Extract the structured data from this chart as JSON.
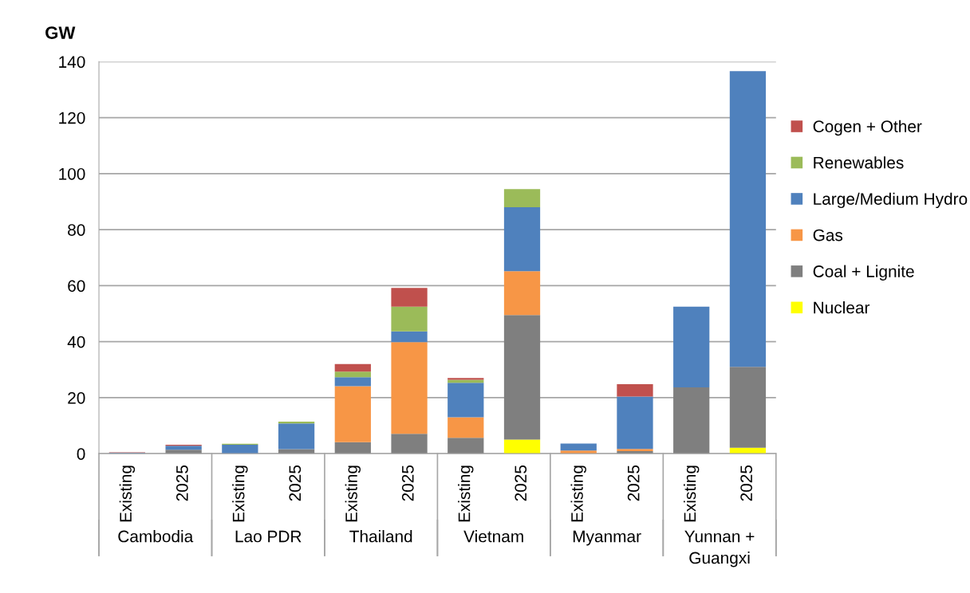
{
  "chart_data": {
    "type": "bar",
    "stacked": true,
    "ylabel": "GW",
    "categories": [
      "Existing",
      "2025",
      "Existing",
      "2025",
      "Existing",
      "2025",
      "Existing",
      "2025",
      "Existing",
      "2025",
      "Existing",
      "2025"
    ],
    "series": [
      {
        "name": "Nuclear",
        "color": "#ffff00",
        "values": [
          0,
          0,
          0,
          0,
          0,
          0,
          0,
          5.0,
          0,
          0,
          0,
          2.1
        ]
      },
      {
        "name": "Coal + Lignite",
        "color": "#7f7f7f",
        "values": [
          0.1,
          1.4,
          0,
          1.6,
          4.1,
          7.1,
          5.7,
          44.5,
          0,
          0.9,
          23.7,
          28.9
        ]
      },
      {
        "name": "Gas",
        "color": "#f79646",
        "values": [
          0,
          0,
          0,
          0,
          20.0,
          32.7,
          7.3,
          15.7,
          1.1,
          0.8,
          0,
          0
        ]
      },
      {
        "name": "Large/Medium Hydro",
        "color": "#4f81bd",
        "values": [
          0.2,
          1.4,
          3.2,
          9.2,
          3.2,
          3.9,
          12.3,
          22.8,
          2.5,
          18.7,
          28.8,
          105.6
        ]
      },
      {
        "name": "Renewables",
        "color": "#9bbb59",
        "values": [
          0,
          0,
          0.3,
          0.6,
          2.0,
          8.8,
          1.1,
          6.5,
          0,
          0,
          0,
          0
        ]
      },
      {
        "name": "Cogen + Other",
        "color": "#c0504d",
        "values": [
          0.2,
          0.4,
          0,
          0,
          2.7,
          6.7,
          0.6,
          0,
          0,
          4.4,
          0,
          0
        ]
      }
    ],
    "annotations": [
      "Cambodia",
      "Lao PDR",
      "Thailand",
      "Vietnam",
      "Myanmar",
      "Yunnan +\nGuangxi"
    ],
    "ylim": [
      0,
      140
    ],
    "yticks": [
      0,
      20,
      40,
      60,
      80,
      100,
      120,
      140
    ],
    "grid": "y",
    "legend": "right"
  }
}
